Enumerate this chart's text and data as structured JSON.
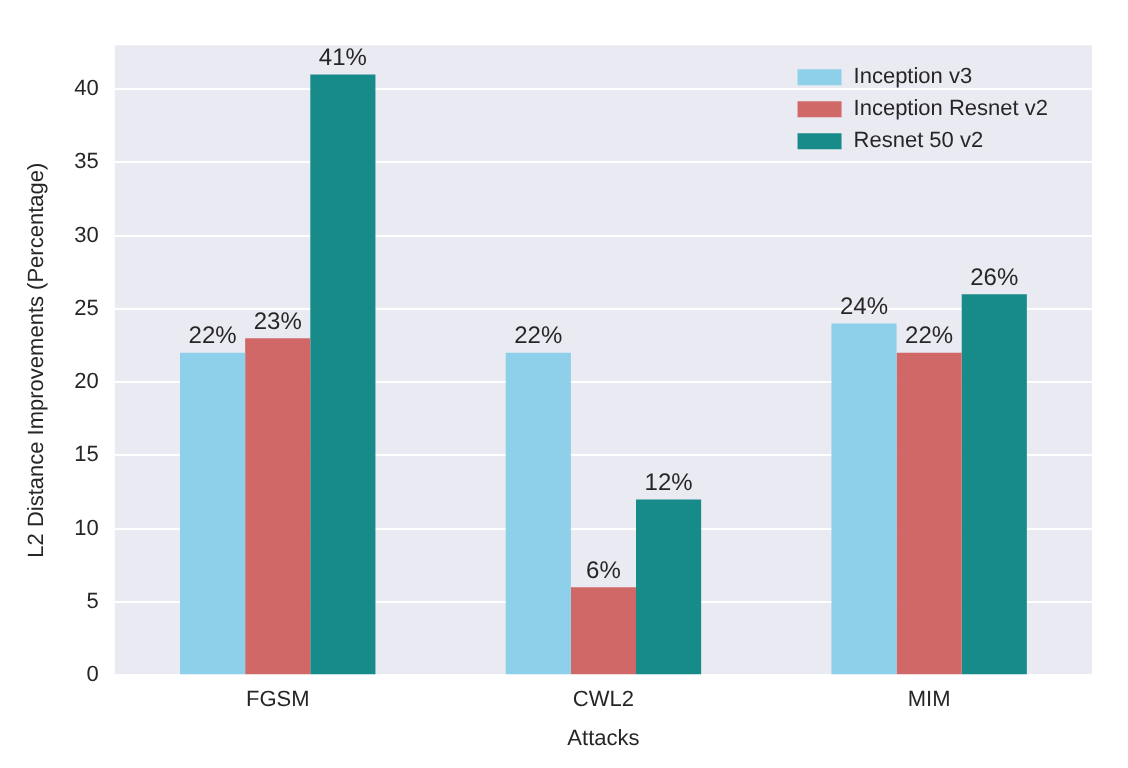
{
  "chart_data": {
    "type": "bar",
    "xlabel": "Attacks",
    "ylabel": "L2 Distance Improvements (Percentage)",
    "categories": [
      "FGSM",
      "CWL2",
      "MIM"
    ],
    "series": [
      {
        "name": "Inception v3",
        "color": "#8ecfea",
        "values": [
          22,
          22,
          24
        ],
        "value_labels": [
          "22%",
          "22%",
          "24%"
        ]
      },
      {
        "name": "Inception Resnet v2",
        "color": "#d06868",
        "values": [
          23,
          6,
          22
        ],
        "value_labels": [
          "23%",
          "6%",
          "22%"
        ]
      },
      {
        "name": "Resnet 50 v2",
        "color": "#178a8a",
        "values": [
          41,
          12,
          26
        ],
        "value_labels": [
          "41%",
          "12%",
          "26%"
        ]
      }
    ],
    "ylim": [
      0,
      43
    ],
    "yticks": [
      0,
      5,
      10,
      15,
      20,
      25,
      30,
      35,
      40
    ],
    "grid": "y",
    "legend": "top right"
  }
}
